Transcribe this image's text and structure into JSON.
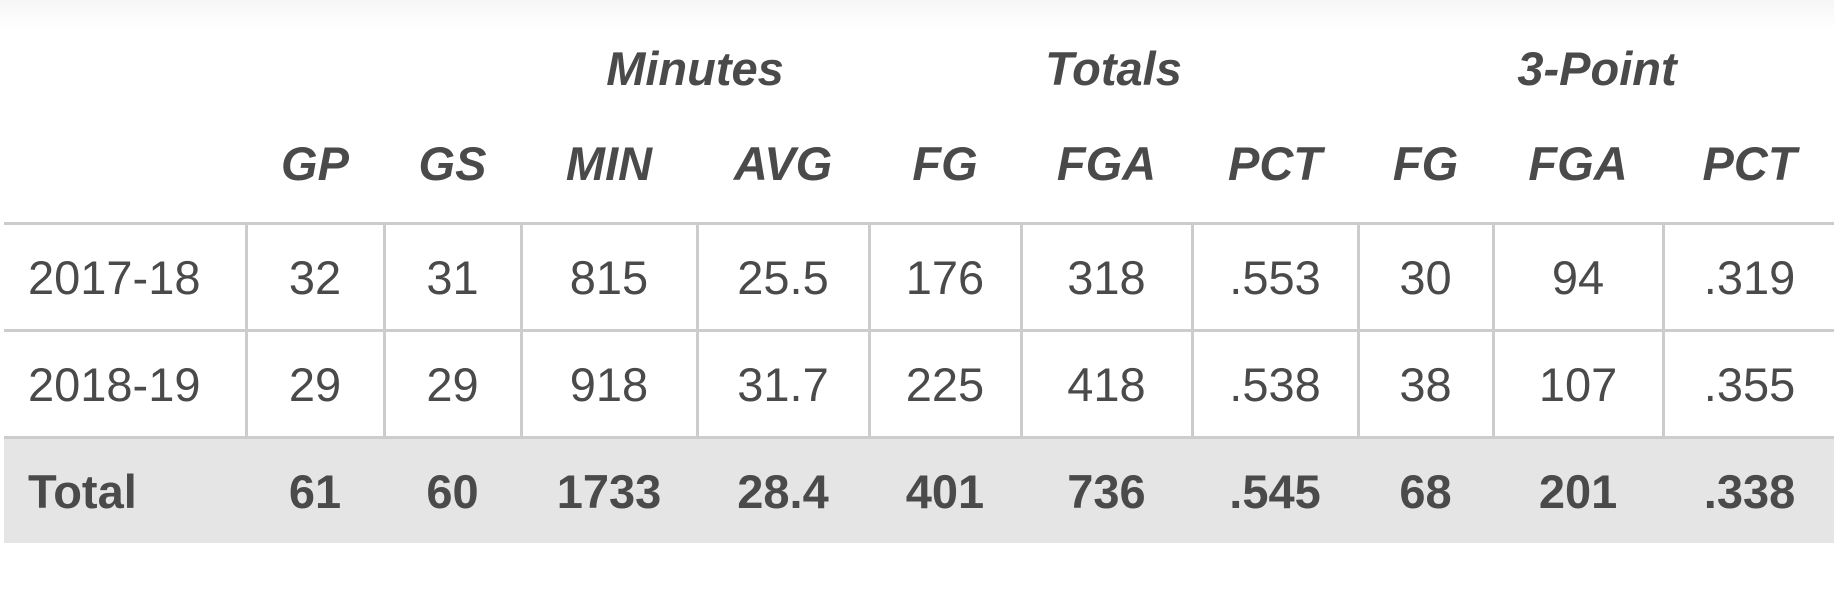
{
  "groups": {
    "minutes": "Minutes",
    "totals": "Totals",
    "three_point": "3-Point"
  },
  "columns": [
    "",
    "GP",
    "GS",
    "MIN",
    "AVG",
    "FG",
    "FGA",
    "PCT",
    "FG",
    "FGA",
    "PCT"
  ],
  "rows": [
    [
      "2017-18",
      "32",
      "31",
      "815",
      "25.5",
      "176",
      "318",
      ".553",
      "30",
      "94",
      ".319"
    ],
    [
      "2018-19",
      "29",
      "29",
      "918",
      "31.7",
      "225",
      "418",
      ".538",
      "38",
      "107",
      ".355"
    ]
  ],
  "total": [
    "Total",
    "61",
    "60",
    "1733",
    "28.4",
    "401",
    "736",
    ".545",
    "68",
    "201",
    ".338"
  ],
  "colors": {
    "text": "#4a4a4a",
    "border": "#cccccc",
    "total_bg": "#e5e5e5"
  }
}
